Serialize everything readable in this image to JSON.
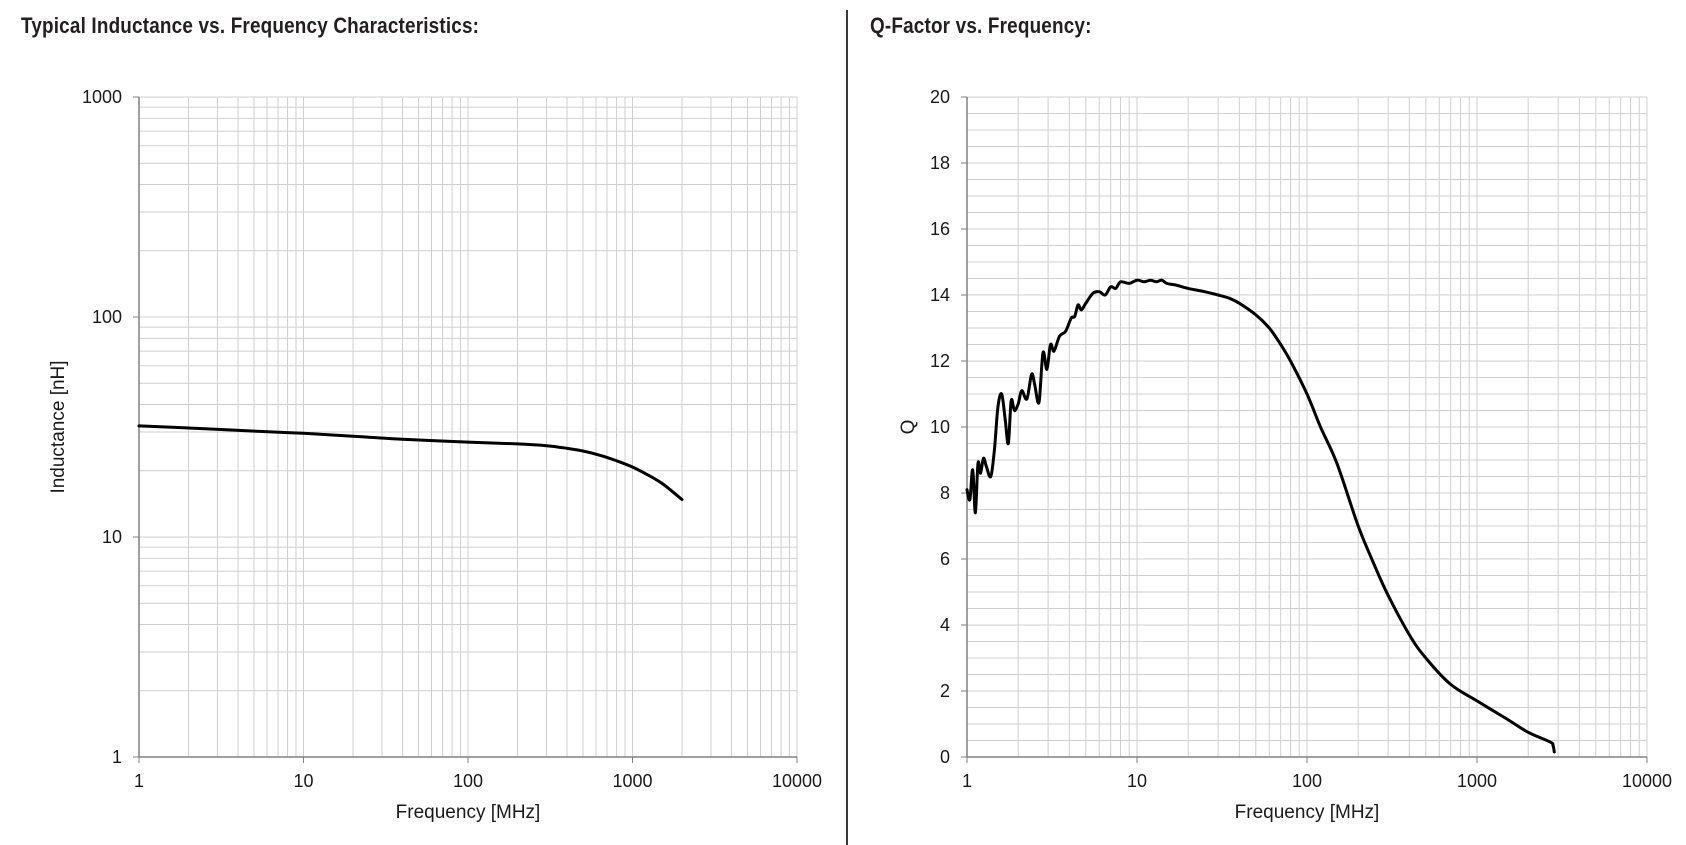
{
  "chart_data": [
    {
      "type": "line",
      "title": "Typical Inductance vs. Frequency Characteristics:",
      "xlabel": "Frequency [MHz]",
      "ylabel": "Inductance [nH]",
      "xscale": "log",
      "yscale": "log",
      "xlim": [
        1,
        10000
      ],
      "ylim": [
        1,
        1000
      ],
      "xticks": [
        "1",
        "10",
        "100",
        "1000",
        "10000"
      ],
      "yticks": [
        "1",
        "10",
        "100",
        "1000"
      ],
      "grid": true,
      "series": [
        {
          "name": "Inductance",
          "x": [
            1,
            2,
            5,
            10,
            20,
            40,
            100,
            200,
            300,
            400,
            500,
            650,
            800,
            1000,
            1200,
            1500,
            1800,
            2000
          ],
          "y": [
            32,
            31.3,
            30.3,
            29.6,
            28.7,
            27.8,
            27.0,
            26.5,
            26.0,
            25.3,
            24.6,
            23.4,
            22.2,
            20.8,
            19.4,
            17.6,
            15.8,
            14.8
          ]
        }
      ]
    },
    {
      "type": "line",
      "title": "Q-Factor vs. Frequency:",
      "xlabel": "Frequency [MHz]",
      "ylabel": "Q",
      "xscale": "log",
      "yscale": "linear",
      "xlim": [
        1,
        10000
      ],
      "ylim": [
        0,
        20
      ],
      "xticks": [
        "1",
        "10",
        "100",
        "1000",
        "10000"
      ],
      "yticks": [
        "0",
        "2",
        "4",
        "6",
        "8",
        "10",
        "12",
        "14",
        "16",
        "18",
        "20"
      ],
      "grid": true,
      "series": [
        {
          "name": "Q",
          "x": [
            1,
            1.04,
            1.08,
            1.12,
            1.16,
            1.2,
            1.25,
            1.3,
            1.38,
            1.45,
            1.52,
            1.6,
            1.68,
            1.75,
            1.82,
            1.9,
            2.0,
            2.1,
            2.25,
            2.4,
            2.5,
            2.65,
            2.8,
            2.95,
            3.1,
            3.25,
            3.5,
            3.8,
            4.1,
            4.3,
            4.5,
            4.7,
            5.0,
            5.5,
            6.0,
            6.5,
            7.0,
            7.5,
            8.0,
            9.0,
            10,
            11,
            12,
            13,
            14,
            15,
            17,
            20,
            25,
            30,
            35,
            40,
            50,
            60,
            70,
            80,
            100,
            120,
            150,
            200,
            250,
            300,
            400,
            500,
            700,
            1000,
            1500,
            2000,
            2700,
            2800,
            2850
          ],
          "y": [
            8.1,
            7.8,
            8.7,
            7.4,
            8.9,
            8.6,
            9.05,
            8.8,
            8.5,
            9.3,
            10.6,
            11.0,
            10.2,
            9.5,
            10.8,
            10.5,
            10.7,
            11.1,
            10.85,
            11.6,
            11.3,
            10.75,
            12.25,
            11.75,
            12.5,
            12.3,
            12.75,
            12.9,
            13.3,
            13.35,
            13.7,
            13.55,
            13.75,
            14.05,
            14.1,
            14.0,
            14.25,
            14.2,
            14.4,
            14.35,
            14.45,
            14.4,
            14.45,
            14.4,
            14.45,
            14.35,
            14.3,
            14.2,
            14.1,
            14.0,
            13.9,
            13.75,
            13.4,
            13.0,
            12.5,
            12.0,
            11.0,
            10.0,
            8.9,
            7.0,
            5.8,
            4.9,
            3.7,
            3.0,
            2.2,
            1.7,
            1.15,
            0.75,
            0.45,
            0.35,
            0.15
          ]
        }
      ]
    }
  ]
}
